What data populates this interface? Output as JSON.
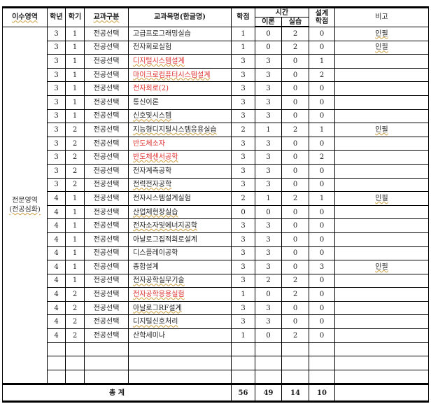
{
  "headers": {
    "area": "이수영역",
    "year": "학년",
    "semester": "학기",
    "category": "교과구분",
    "course": "교과목명(한글명)",
    "credits": "학점",
    "time": "시간",
    "theory": "이론",
    "practice": "실습",
    "design": "설계\n학점",
    "note": "비고"
  },
  "area_label": {
    "line1": "전문영역",
    "line2": "(전공심화)"
  },
  "rows": [
    {
      "year": "3",
      "sem": "1",
      "cat": "전공선택",
      "name": "고급프로그래밍실습",
      "credits": "1",
      "theory": "0",
      "practice": "2",
      "design": "0",
      "note": "인필",
      "red": false,
      "sp": false
    },
    {
      "year": "3",
      "sem": "1",
      "cat": "전공선택",
      "name": "전자회로실험",
      "credits": "1",
      "theory": "0",
      "practice": "2",
      "design": "0",
      "note": "인필",
      "red": false,
      "sp": false
    },
    {
      "year": "3",
      "sem": "1",
      "cat": "전공선택",
      "name": "디지털시스템설계",
      "credits": "3",
      "theory": "3",
      "practice": "0",
      "design": "1",
      "note": "",
      "red": true,
      "sp": true
    },
    {
      "year": "3",
      "sem": "1",
      "cat": "전공선택",
      "name": "마이크로컴퓨터시스템설계",
      "credits": "3",
      "theory": "3",
      "practice": "0",
      "design": "2",
      "note": "",
      "red": true,
      "sp": true
    },
    {
      "year": "3",
      "sem": "1",
      "cat": "전공선택",
      "name": "전자회로(2)",
      "credits": "3",
      "theory": "3",
      "practice": "0",
      "design": "0",
      "note": "",
      "red": true,
      "sp": false
    },
    {
      "year": "3",
      "sem": "1",
      "cat": "전공선택",
      "name": "통신이론",
      "credits": "3",
      "theory": "3",
      "practice": "0",
      "design": "0",
      "note": "",
      "red": false,
      "sp": false
    },
    {
      "year": "3",
      "sem": "1",
      "cat": "전공선택",
      "name": "신호및시스템",
      "credits": "3",
      "theory": "3",
      "practice": "0",
      "design": "0",
      "note": "",
      "red": false,
      "sp": true
    },
    {
      "year": "3",
      "sem": "2",
      "cat": "전공선택",
      "name": "지능형디지털시스템응용실습",
      "credits": "2",
      "theory": "1",
      "practice": "2",
      "design": "1",
      "note": "인필",
      "red": false,
      "sp": true
    },
    {
      "year": "3",
      "sem": "2",
      "cat": "전공선택",
      "name": "반도체소자",
      "credits": "3",
      "theory": "3",
      "practice": "0",
      "design": "0",
      "note": "",
      "red": true,
      "sp": false
    },
    {
      "year": "3",
      "sem": "2",
      "cat": "전공선택",
      "name": "반도체센서공학",
      "credits": "3",
      "theory": "3",
      "practice": "0",
      "design": "2",
      "note": "",
      "red": true,
      "sp": true
    },
    {
      "year": "3",
      "sem": "2",
      "cat": "전공선택",
      "name": "전자계측공학",
      "credits": "3",
      "theory": "3",
      "practice": "0",
      "design": "0",
      "note": "",
      "red": false,
      "sp": false
    },
    {
      "year": "3",
      "sem": "2",
      "cat": "전공선택",
      "name": "전력전자공학",
      "credits": "3",
      "theory": "3",
      "practice": "0",
      "design": "0",
      "note": "",
      "red": false,
      "sp": true
    },
    {
      "year": "4",
      "sem": "1",
      "cat": "전공선택",
      "name": "전자시스템설계실험",
      "credits": "2",
      "theory": "1",
      "practice": "2",
      "design": "1",
      "note": "인필",
      "red": false,
      "sp": false
    },
    {
      "year": "4",
      "sem": "1",
      "cat": "전공선택",
      "name": "산업체현장실습",
      "credits": "0",
      "theory": "0",
      "practice": "0",
      "design": "0",
      "note": "",
      "red": false,
      "sp": true
    },
    {
      "year": "4",
      "sem": "1",
      "cat": "전공선택",
      "name": "전자소자및에너지공학",
      "credits": "3",
      "theory": "3",
      "practice": "0",
      "design": "0",
      "note": "",
      "red": false,
      "sp": true
    },
    {
      "year": "4",
      "sem": "1",
      "cat": "전공선택",
      "name": "아날로그집적회로설계",
      "credits": "3",
      "theory": "3",
      "practice": "0",
      "design": "0",
      "note": "",
      "red": false,
      "sp": false
    },
    {
      "year": "4",
      "sem": "1",
      "cat": "전공선택",
      "name": "디스플레이공학",
      "credits": "3",
      "theory": "3",
      "practice": "0",
      "design": "0",
      "note": "",
      "red": false,
      "sp": false
    },
    {
      "year": "4",
      "sem": "1",
      "cat": "전공선택",
      "name": "종합설계",
      "credits": "3",
      "theory": "3",
      "practice": "0",
      "design": "3",
      "note": "인필",
      "red": false,
      "sp": false
    },
    {
      "year": "4",
      "sem": "1",
      "cat": "전공선택",
      "name": "전자공학실무기술",
      "credits": "3",
      "theory": "2",
      "practice": "2",
      "design": "0",
      "note": "",
      "red": false,
      "sp": true
    },
    {
      "year": "4",
      "sem": "2",
      "cat": "전공선택",
      "name": "전자공학응용실험",
      "credits": "1",
      "theory": "0",
      "practice": "2",
      "design": "0",
      "note": "",
      "red": true,
      "sp": true
    },
    {
      "year": "4",
      "sem": "2",
      "cat": "전공선택",
      "name": "아날로그RF설계",
      "credits": "3",
      "theory": "3",
      "practice": "0",
      "design": "0",
      "note": "",
      "red": false,
      "sp": true
    },
    {
      "year": "4",
      "sem": "2",
      "cat": "전공선택",
      "name": "디지털신호처리",
      "credits": "3",
      "theory": "3",
      "practice": "0",
      "design": "0",
      "note": "",
      "red": false,
      "sp": true
    },
    {
      "year": "4",
      "sem": "2",
      "cat": "전공선택",
      "name": "산학세미나",
      "credits": "1",
      "theory": "0",
      "practice": "2",
      "design": "0",
      "note": "",
      "red": false,
      "sp": false
    }
  ],
  "empty_rows": 3,
  "total": {
    "label": "총 계",
    "credits": "56",
    "theory": "49",
    "practice": "14",
    "design": "10",
    "note": ""
  }
}
